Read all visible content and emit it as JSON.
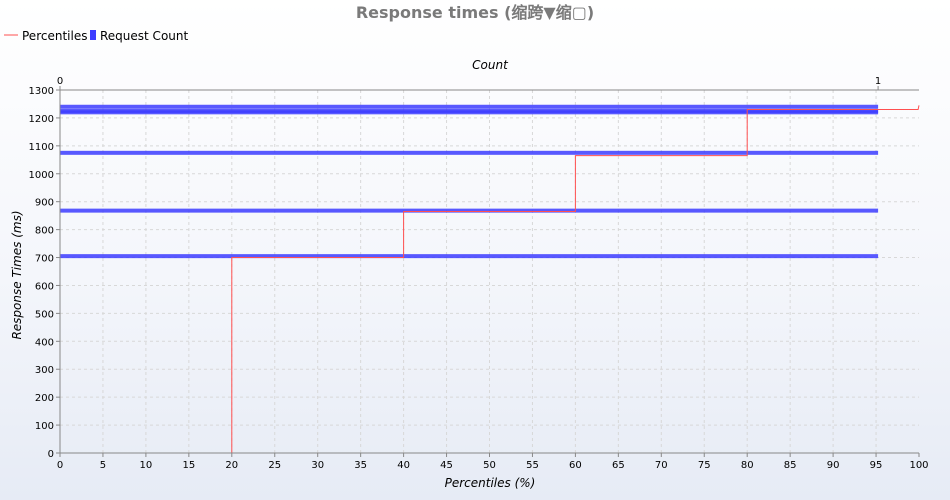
{
  "chart_data": {
    "type": "line",
    "title": "Response times (缩跨▼缩▢)",
    "xlabel": "Percentiles (%)",
    "ylabel": "Response Times (ms)",
    "x2label": "Count",
    "xlim": [
      0,
      100
    ],
    "ylim": [
      0,
      1300
    ],
    "x2lim": [
      0,
      1.05
    ],
    "x_ticks": [
      "0",
      "5",
      "10",
      "15",
      "20",
      "25",
      "30",
      "35",
      "40",
      "45",
      "50",
      "55",
      "60",
      "65",
      "70",
      "75",
      "80",
      "85",
      "90",
      "95",
      "100"
    ],
    "y_ticks": [
      "0",
      "100",
      "200",
      "300",
      "400",
      "500",
      "600",
      "700",
      "800",
      "900",
      "1000",
      "1100",
      "1200",
      "1300"
    ],
    "x2_ticks": [
      "0",
      "1"
    ],
    "grid": true,
    "legend_position": "top-left",
    "series": [
      {
        "name": "Percentiles",
        "type": "step-line",
        "color": "#ff5050",
        "x": [
          20,
          20,
          40,
          40,
          60,
          60,
          80,
          80,
          99.9,
          100
        ],
        "y": [
          0,
          700,
          700,
          865,
          865,
          1065,
          1065,
          1230,
          1230,
          1245
        ]
      },
      {
        "name": "Request Count",
        "type": "horizontal-bar",
        "color": "#3c3cff",
        "count": [
          1,
          1,
          1,
          1,
          1,
          1
        ],
        "y": [
          705,
          868,
          1075,
          1220,
          1225,
          1240
        ]
      }
    ]
  }
}
